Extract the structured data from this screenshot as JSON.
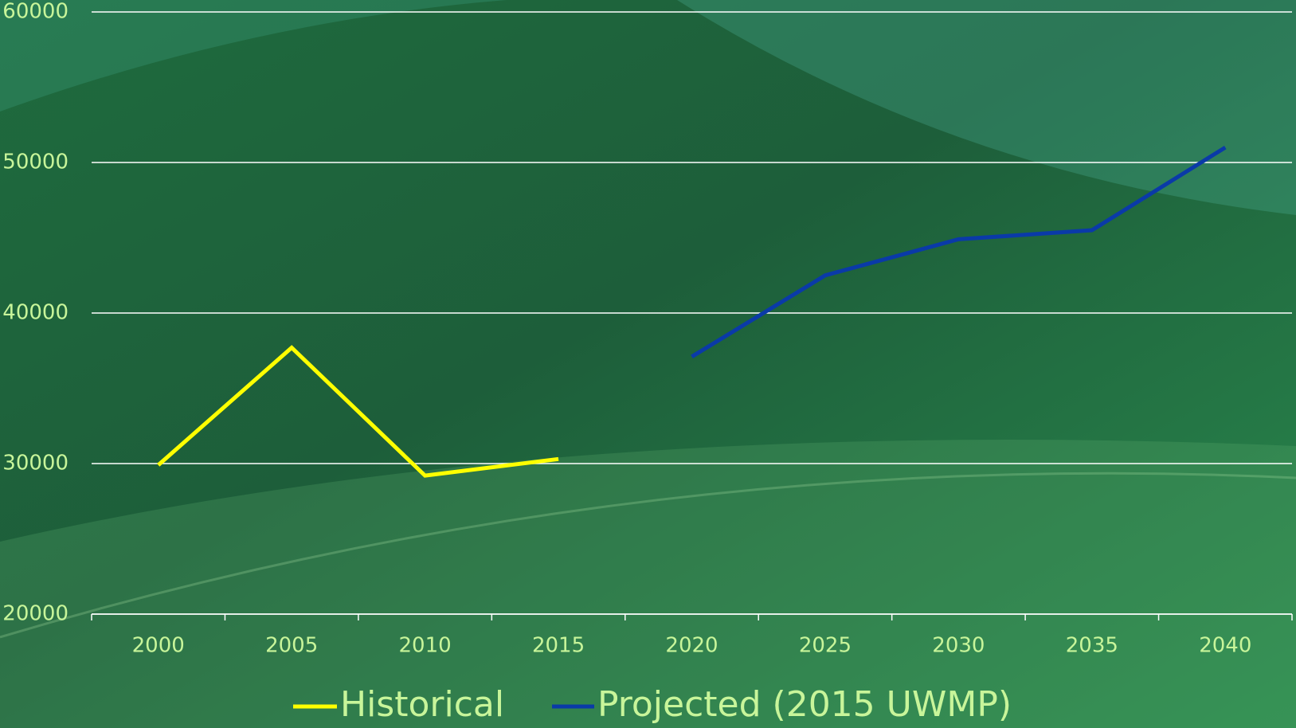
{
  "chart_data": {
    "type": "line",
    "categories": [
      2000,
      2005,
      2010,
      2015,
      2020,
      2025,
      2030,
      2035,
      2040
    ],
    "series": [
      {
        "name": "Historical",
        "color": "#ffff00",
        "values": [
          29900,
          37700,
          29200,
          30300,
          null,
          null,
          null,
          null,
          null
        ]
      },
      {
        "name": "Projected (2015 UWMP)",
        "color": "#0a3aa8",
        "values": [
          null,
          null,
          null,
          null,
          37100,
          42500,
          44900,
          45500,
          51000
        ]
      }
    ],
    "ylim": [
      20000,
      60000
    ],
    "yticks": [
      20000,
      30000,
      40000,
      50000,
      60000
    ],
    "grid": true,
    "legend": "bottom"
  }
}
